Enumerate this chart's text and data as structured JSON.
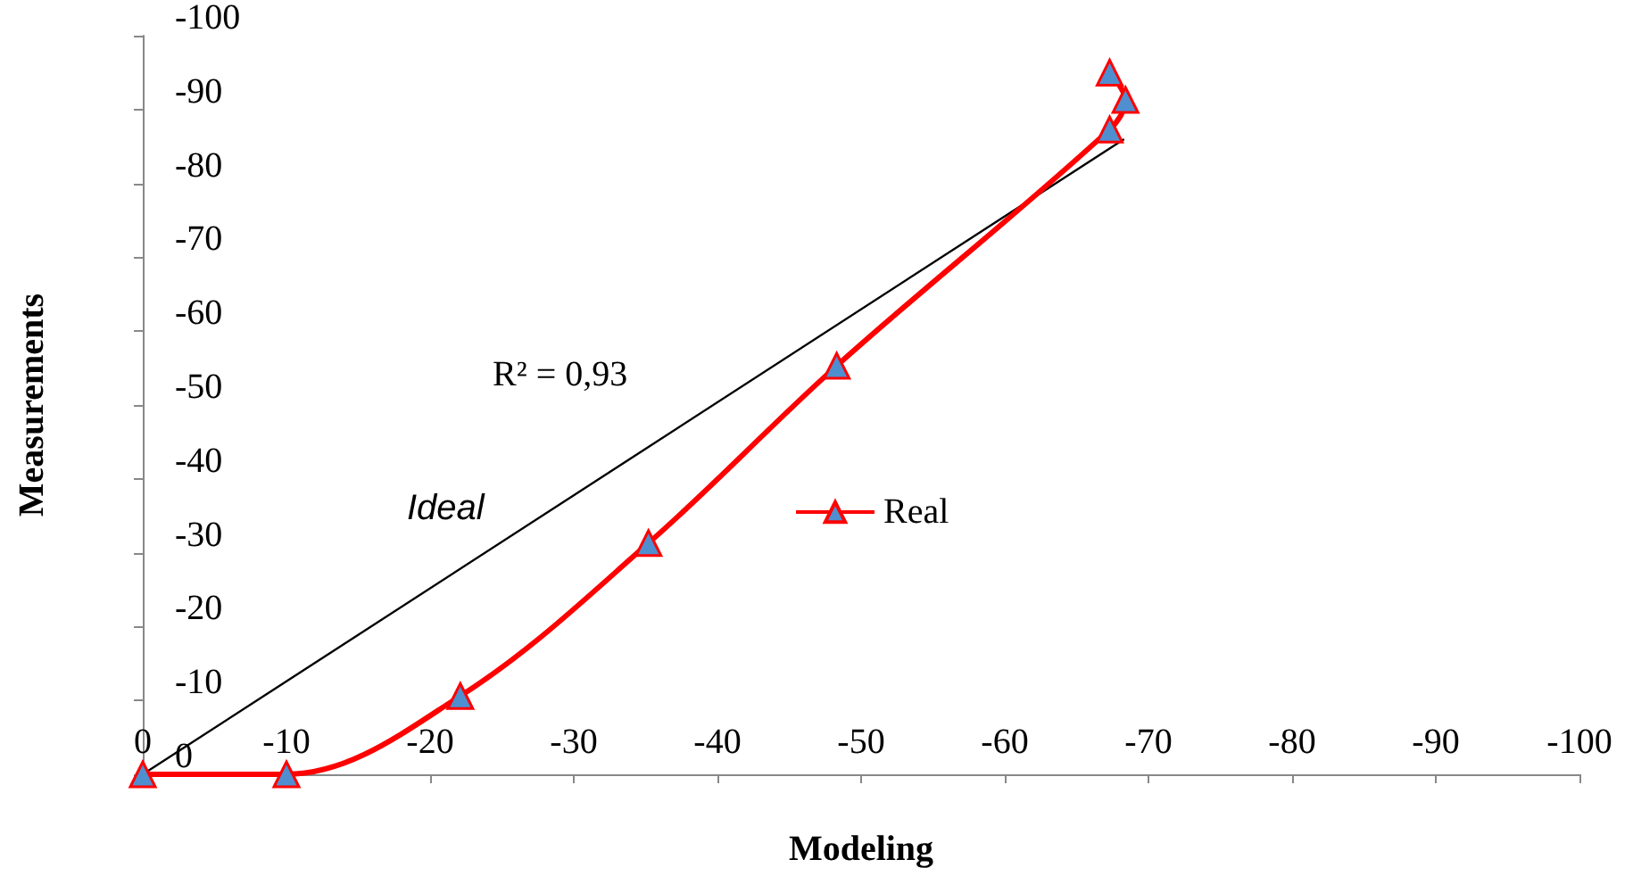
{
  "chart_data": {
    "type": "line",
    "xlabel": "Modeling",
    "ylabel": "Measurements",
    "xlim": [
      0,
      -100
    ],
    "ylim": [
      0,
      -100
    ],
    "xticks": [
      0,
      -10,
      -20,
      -30,
      -40,
      -50,
      -60,
      -70,
      -80,
      -90,
      -100
    ],
    "yticks": [
      0,
      -10,
      -20,
      -30,
      -40,
      -50,
      -60,
      -70,
      -80,
      -90,
      -100
    ],
    "series": [
      {
        "name": "Real",
        "color": "#ff0000",
        "marker": "triangle",
        "x": [
          0,
          -10,
          -22.1,
          -35.2,
          -48.3,
          -67.3,
          -68.4,
          -67.3
        ],
        "values": [
          0,
          0,
          -10.6,
          -31.3,
          -55.3,
          -87.3,
          -91.3,
          -95
        ]
      },
      {
        "color": "#000000",
        "marker": "none",
        "x": [
          0,
          -68.3
        ],
        "values": [
          0,
          -86
        ]
      }
    ],
    "annotations": [
      "Ideal",
      "R² = 0,93"
    ],
    "legend": "right",
    "grid": false
  }
}
